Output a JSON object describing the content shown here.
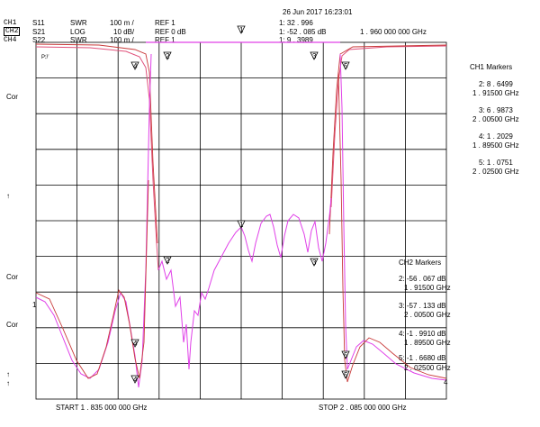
{
  "header": {
    "datetime": "26 Jun 2017  16:23:01",
    "channels": [
      {
        "ch": "CH1",
        "param": "S11",
        "fmt": "SWR",
        "scale": "100 m /",
        "ref": "REF 1",
        "boxed": false
      },
      {
        "ch": "CH2",
        "param": "S21",
        "fmt": "LOG",
        "scale": "10 dB/",
        "ref": "REF 0 dB",
        "boxed": true
      },
      {
        "ch": "CH4",
        "param": "S22",
        "fmt": "SWR",
        "scale": "100 m /",
        "ref": "REF 1",
        "boxed": false
      }
    ],
    "readout": {
      "line1": "1:  32 . 996",
      "line2": "1: -52 . 085   dB",
      "line3": "1:  9 . 3989",
      "freq": "1 . 960  000  000   GHz"
    }
  },
  "axis": {
    "start": "START   1 . 835  000  000   GHz",
    "stop": "STOP   2 . 085  000  000   GHz",
    "ref_mark": "1",
    "side_labels": [
      "Cor",
      "↑",
      "Cor",
      "Cor",
      "↑",
      "↑"
    ],
    "pf": "Pℱ"
  },
  "ch1_markers": {
    "title": "CH1   Markers",
    "items": [
      {
        "v": "2:  8 . 6499",
        "f": "1 . 91500   GHz"
      },
      {
        "v": "3:  6 . 9873",
        "f": "2 . 00500   GHz"
      },
      {
        "v": "4:  1 . 2029",
        "f": "1 . 89500   GHz"
      },
      {
        "v": "5:  1 . 0751",
        "f": "2 . 02500   GHz"
      }
    ]
  },
  "ch2_markers": {
    "title": "CH2   Markers",
    "items": [
      {
        "v": "2: -56 . 067   dB",
        "f": "1 . 91500   GHz"
      },
      {
        "v": "3: -57 . 133   dB",
        "f": "2 . 00500   GHz"
      },
      {
        "v": "4: -1 . 9910   dB",
        "f": "1 . 89500   GHz"
      },
      {
        "v": "5: -1 . 6680   dB",
        "f": "2 . 02500   GHz"
      }
    ]
  },
  "trace_marker_labels": [
    "1",
    "2",
    "3",
    "4",
    "5"
  ],
  "colors": {
    "ch1": "#e0507a",
    "ch2": "#e040e8",
    "ch4": "#c83a3a",
    "grid": "#000000"
  }
}
